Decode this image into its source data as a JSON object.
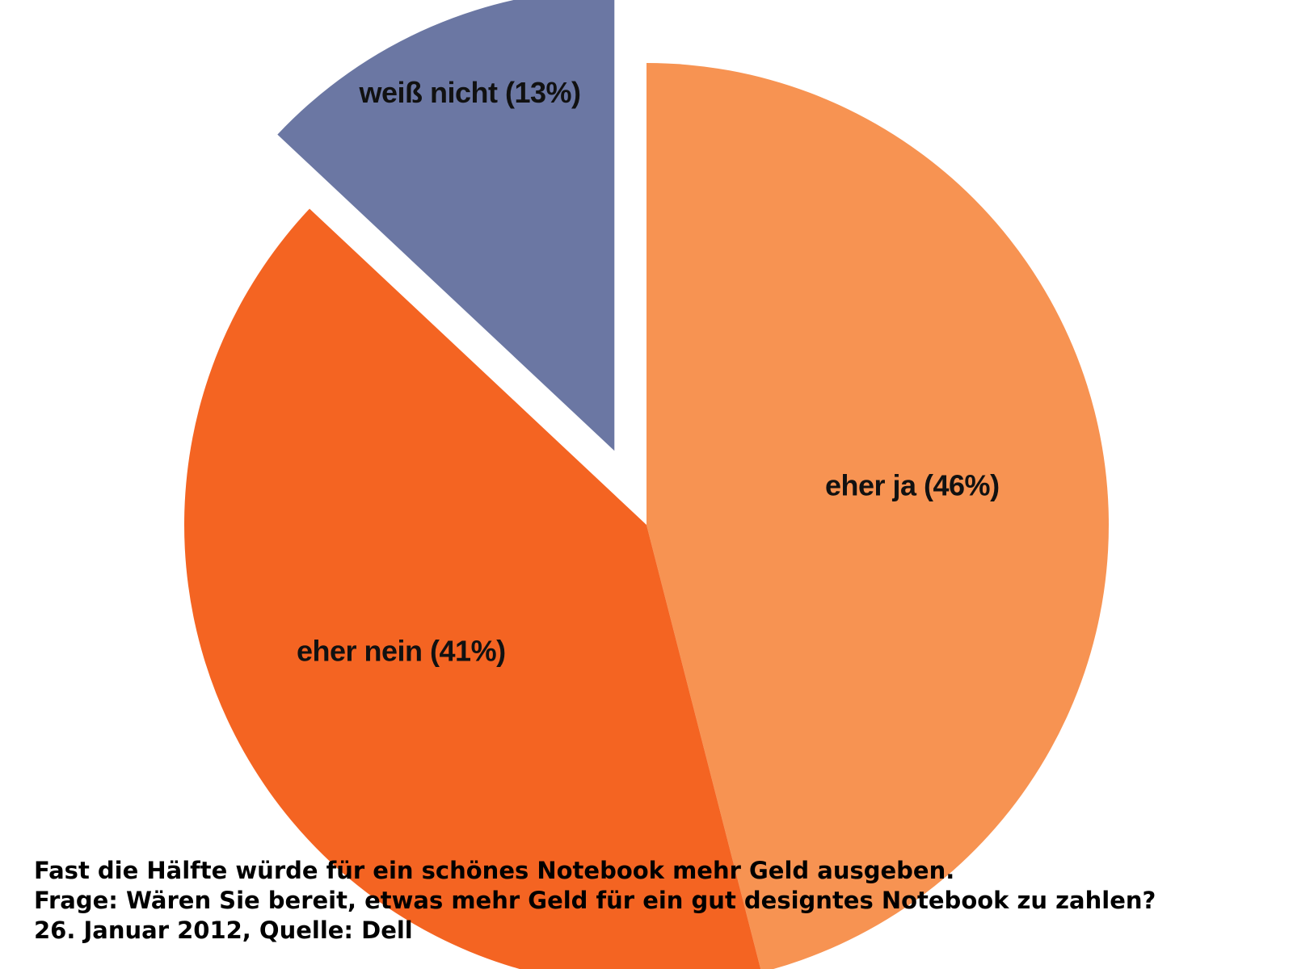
{
  "chart_data": {
    "type": "pie",
    "title": "",
    "slices": [
      {
        "label": "eher ja (46%)",
        "value": 46,
        "color": "#F79352",
        "exploded": false
      },
      {
        "label": "eher nein (41%)",
        "value": 41,
        "color": "#F46422",
        "exploded": false
      },
      {
        "label": "weiß nicht (13%)",
        "value": 13,
        "color": "#6B77A3",
        "exploded": true
      }
    ],
    "start": "12 o'clock",
    "direction": "clockwise",
    "legend": "none"
  },
  "caption": {
    "line1": "Fast die Hälfte würde für ein schönes Notebook mehr Geld ausgeben.",
    "line2": "Frage: Wären Sie bereit, etwas mehr Geld für ein gut designtes Notebook zu zahlen?",
    "line3": "26. Januar 2012, Quelle: Dell"
  }
}
